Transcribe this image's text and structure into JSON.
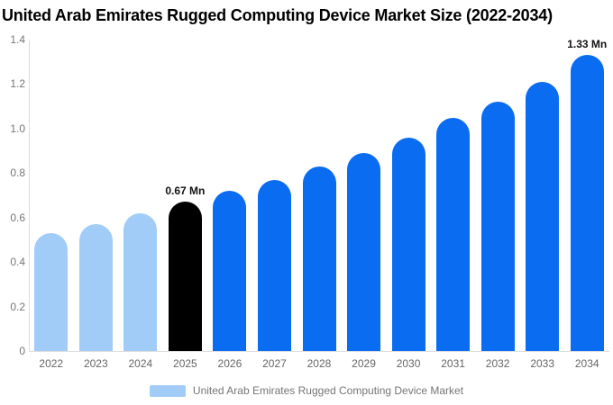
{
  "title": "United Arab Emirates Rugged Computing Device Market Size (2022-2034)",
  "legend": {
    "label": "United Arab Emirates Rugged Computing Device Market",
    "swatch_color": "#a2ccf8"
  },
  "colors": {
    "historical": "#a2ccf8",
    "base_year": "#000000",
    "forecast": "#0a6cf0",
    "axis_line": "#dddddd",
    "tick_text": "#757575",
    "annotation_text": "#111111"
  },
  "chart_data": {
    "type": "bar",
    "title": "United Arab Emirates Rugged Computing Device Market Size (2022-2034)",
    "series_name": "United Arab Emirates Rugged Computing Device Market",
    "unit": "Mn",
    "categories": [
      "2022",
      "2023",
      "2024",
      "2025",
      "2026",
      "2027",
      "2028",
      "2029",
      "2030",
      "2031",
      "2032",
      "2033",
      "2034"
    ],
    "values": [
      0.53,
      0.57,
      0.62,
      0.67,
      0.72,
      0.77,
      0.83,
      0.89,
      0.96,
      1.05,
      1.12,
      1.21,
      1.33
    ],
    "bar_roles": [
      "historical",
      "historical",
      "historical",
      "base_year",
      "forecast",
      "forecast",
      "forecast",
      "forecast",
      "forecast",
      "forecast",
      "forecast",
      "forecast",
      "forecast"
    ],
    "annotations": [
      {
        "category": "2025",
        "text": "0.67 Mn"
      },
      {
        "category": "2034",
        "text": "1.33 Mn"
      }
    ],
    "xlabel": "",
    "ylabel": "",
    "ylim": [
      0,
      1.4
    ],
    "yticks": [
      "0",
      "0.2",
      "0.4",
      "0.6",
      "0.8",
      "1.0",
      "1.2",
      "1.4"
    ],
    "grid": false,
    "legend_position": "bottom"
  }
}
